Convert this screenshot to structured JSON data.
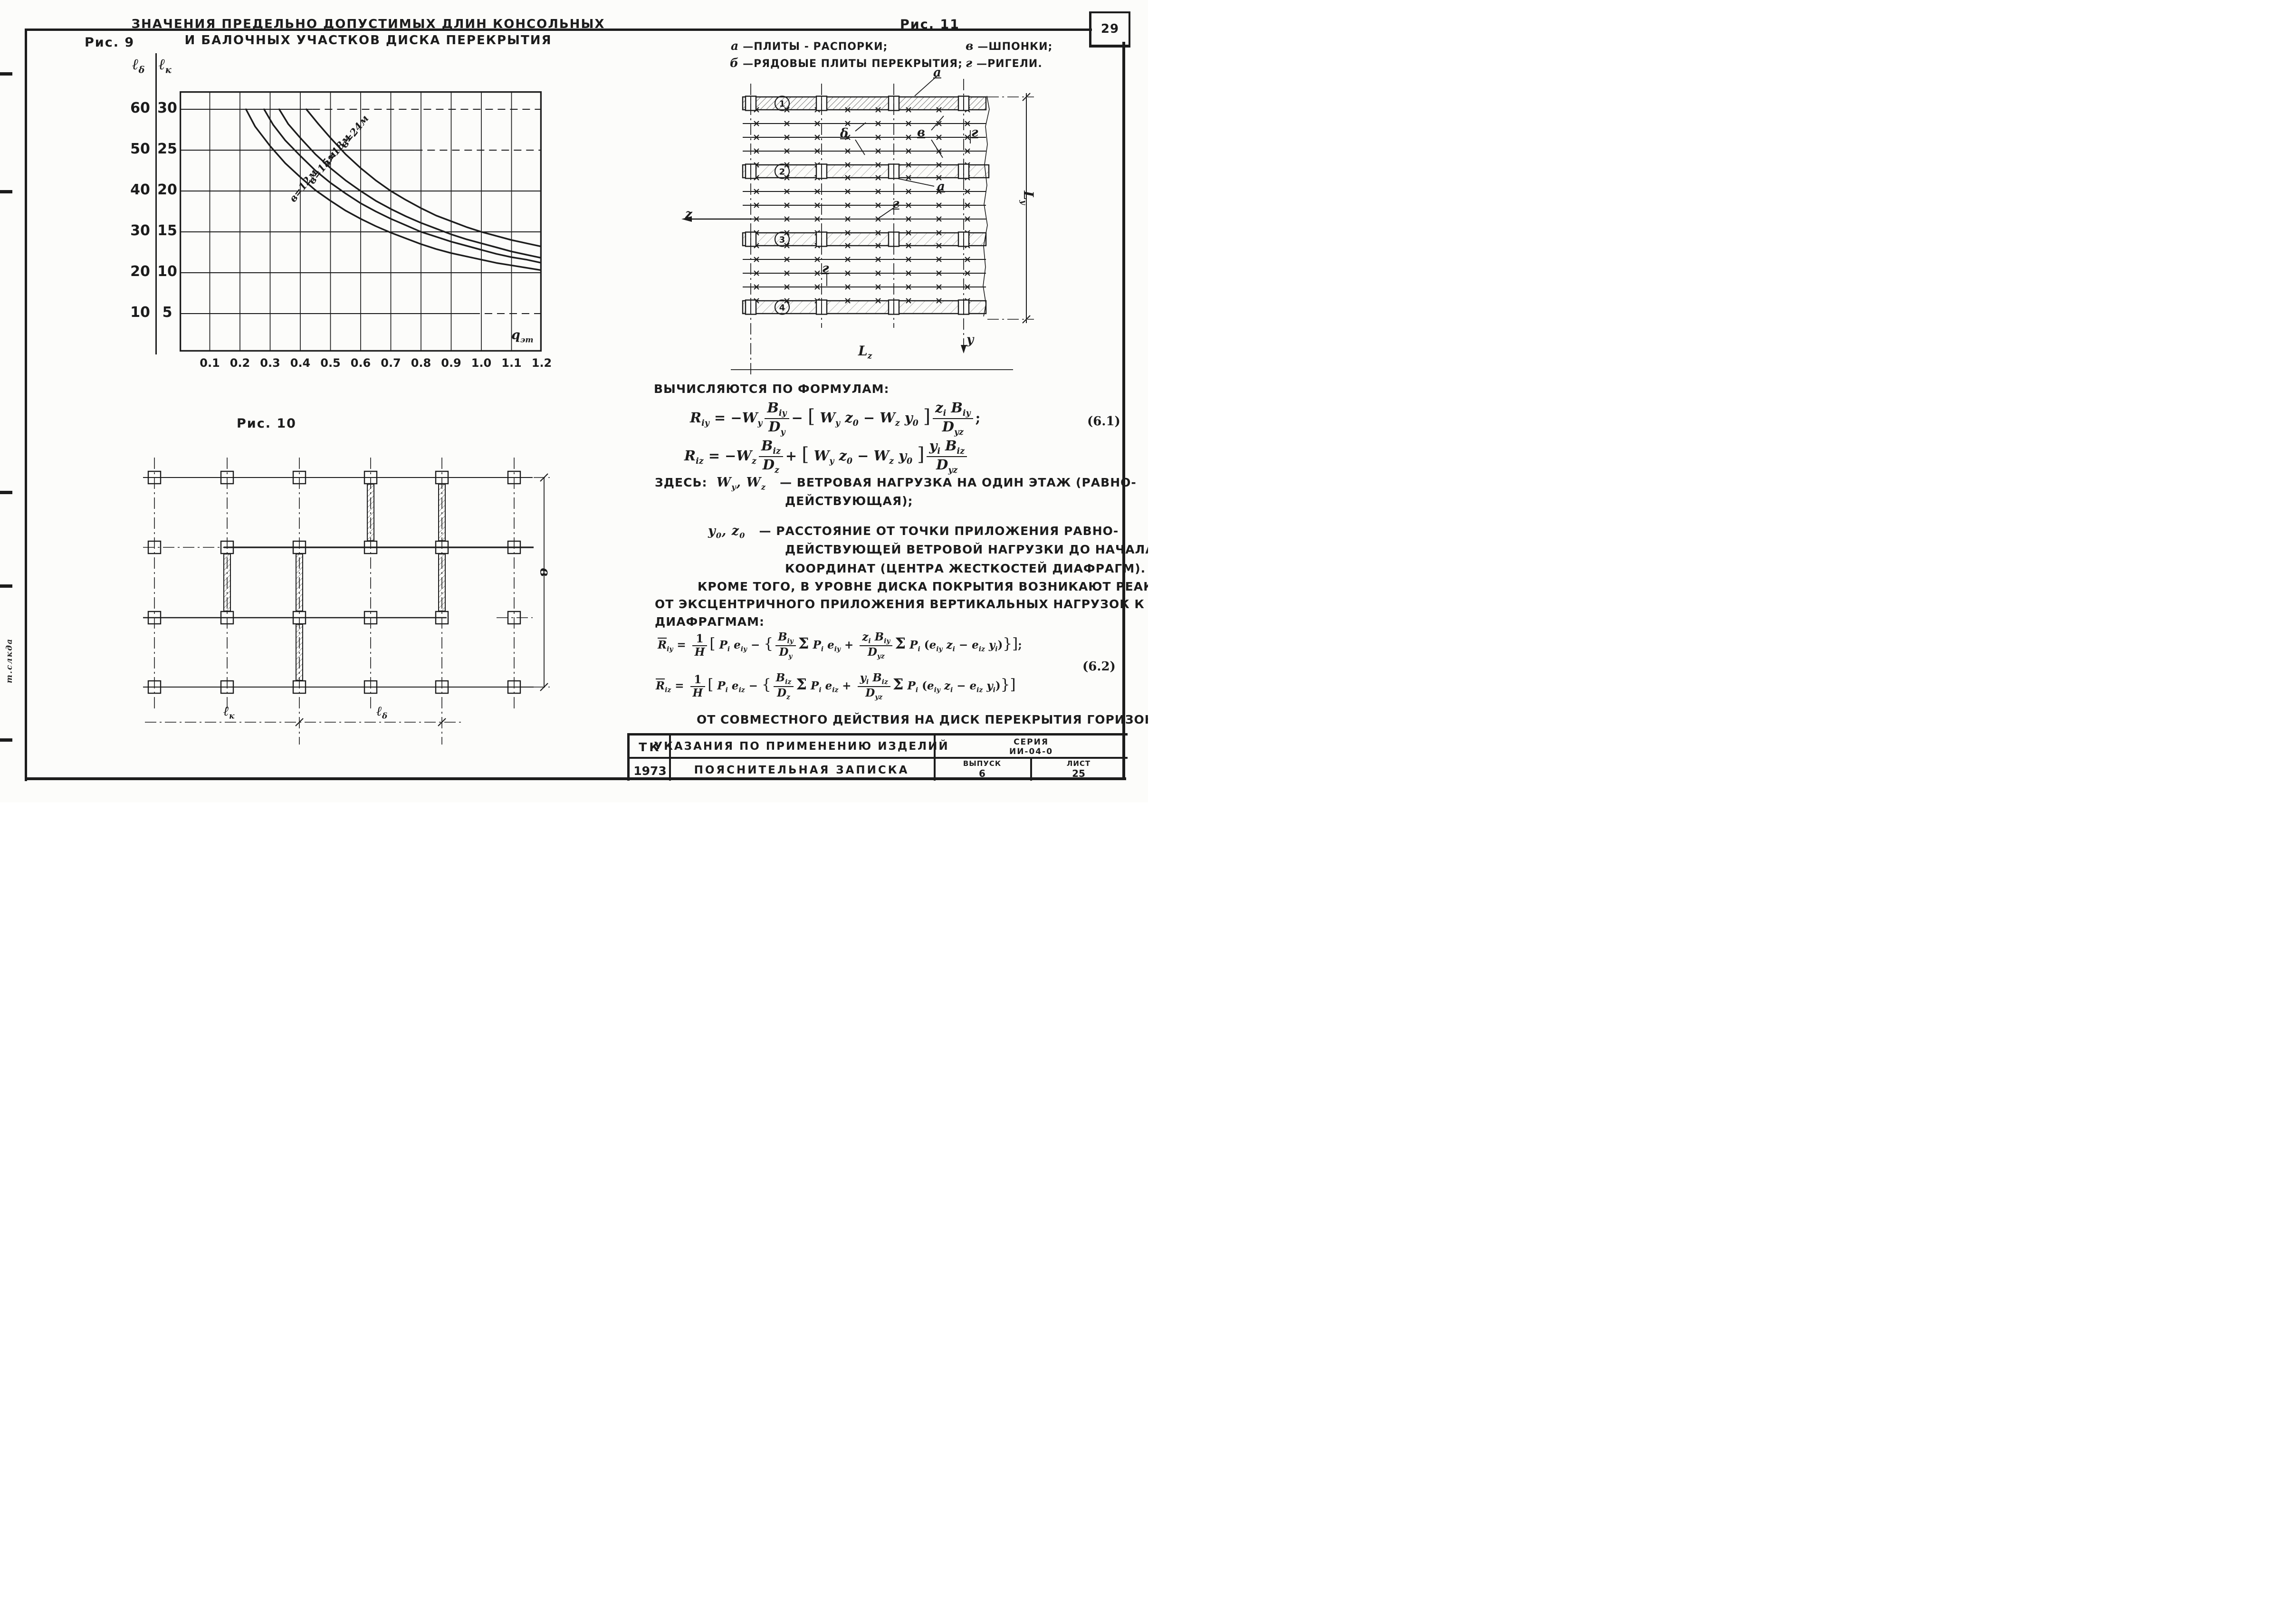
{
  "page": {
    "number": "29",
    "margin_note": "т.слкда"
  },
  "fig9": {
    "label": "Рис. 9",
    "title_line1": "ЗНАЧЕНИЯ  ПРЕДЕЛЬНО  ДОПУСТИМЫХ  ДЛИН  КОНСОЛЬНЫХ",
    "title_line2": "И  БАЛОЧНЫХ  УЧАСТКОВ  ДИСКА  ПЕРЕКРЫТИЯ",
    "axis_left_html": "ℓ<sub>δ</sub>",
    "axis_right_html": "ℓ<sub>к</sub>",
    "x_axis_label_html": "q<sub>эт</sub>"
  },
  "chart_data": {
    "type": "line",
    "title": "Значения предельно допустимых длин консольных и балочных участков диска перекрытия",
    "xlabel": "qэт",
    "ylabel_left": "ℓδ",
    "ylabel_right": "ℓк",
    "xlim": [
      0,
      1.2
    ],
    "ylim_right": [
      0,
      32
    ],
    "grid": true,
    "x_ticks": [
      0.1,
      0.2,
      0.3,
      0.4,
      0.5,
      0.6,
      0.7,
      0.8,
      0.9,
      1.0,
      1.1,
      1.2
    ],
    "x_tick_labels": [
      "0.1",
      "0.2",
      "0.3",
      "0.4",
      "0.5",
      "0.6",
      "0.7",
      "0.8",
      "0.9",
      "1.0",
      "1.1",
      "1.2"
    ],
    "y_ticks_left": [
      "60",
      "50",
      "40",
      "30",
      "20",
      "10"
    ],
    "y_ticks_right": [
      "30",
      "25",
      "20",
      "15",
      "10",
      "5"
    ],
    "note": "curve y-values in ℓк units (right scale); ℓδ = 2·ℓк",
    "series": [
      {
        "name": "в=24м",
        "points": [
          [
            0.42,
            30
          ],
          [
            0.46,
            28.2
          ],
          [
            0.5,
            26.5
          ],
          [
            0.55,
            24.5
          ],
          [
            0.6,
            22.8
          ],
          [
            0.65,
            21.3
          ],
          [
            0.7,
            20
          ],
          [
            0.75,
            18.9
          ],
          [
            0.8,
            17.9
          ],
          [
            0.85,
            17
          ],
          [
            0.9,
            16.3
          ],
          [
            0.95,
            15.6
          ],
          [
            1.0,
            15
          ],
          [
            1.05,
            14.5
          ],
          [
            1.1,
            14
          ],
          [
            1.15,
            13.6
          ],
          [
            1.2,
            13.2
          ]
        ]
      },
      {
        "name": "в=18м",
        "points": [
          [
            0.33,
            30
          ],
          [
            0.36,
            28.2
          ],
          [
            0.4,
            26.5
          ],
          [
            0.45,
            24.5
          ],
          [
            0.5,
            22.8
          ],
          [
            0.55,
            21.3
          ],
          [
            0.6,
            20
          ],
          [
            0.65,
            18.8
          ],
          [
            0.7,
            17.8
          ],
          [
            0.75,
            16.9
          ],
          [
            0.8,
            16.1
          ],
          [
            0.85,
            15.4
          ],
          [
            0.9,
            14.7
          ],
          [
            0.95,
            14.1
          ],
          [
            1.0,
            13.6
          ],
          [
            1.05,
            13.1
          ],
          [
            1.1,
            12.6
          ],
          [
            1.15,
            12.2
          ],
          [
            1.2,
            11.8
          ]
        ]
      },
      {
        "name": "в=15м",
        "points": [
          [
            0.28,
            30
          ],
          [
            0.31,
            28.1
          ],
          [
            0.35,
            26.2
          ],
          [
            0.4,
            24.3
          ],
          [
            0.45,
            22.5
          ],
          [
            0.5,
            21
          ],
          [
            0.55,
            19.7
          ],
          [
            0.6,
            18.5
          ],
          [
            0.65,
            17.5
          ],
          [
            0.7,
            16.6
          ],
          [
            0.75,
            15.8
          ],
          [
            0.8,
            15
          ],
          [
            0.85,
            14.4
          ],
          [
            0.9,
            13.8
          ],
          [
            0.95,
            13.3
          ],
          [
            1.0,
            12.8
          ],
          [
            1.05,
            12.3
          ],
          [
            1.1,
            11.9
          ],
          [
            1.15,
            11.6
          ],
          [
            1.2,
            11.2
          ]
        ]
      },
      {
        "name": "в=12м",
        "points": [
          [
            0.22,
            30
          ],
          [
            0.25,
            27.9
          ],
          [
            0.3,
            25.5
          ],
          [
            0.35,
            23.4
          ],
          [
            0.4,
            21.7
          ],
          [
            0.45,
            20.1
          ],
          [
            0.5,
            18.8
          ],
          [
            0.55,
            17.6
          ],
          [
            0.6,
            16.6
          ],
          [
            0.65,
            15.7
          ],
          [
            0.7,
            14.9
          ],
          [
            0.75,
            14.2
          ],
          [
            0.8,
            13.5
          ],
          [
            0.85,
            12.9
          ],
          [
            0.9,
            12.4
          ],
          [
            0.95,
            12
          ],
          [
            1.0,
            11.6
          ],
          [
            1.05,
            11.2
          ],
          [
            1.1,
            10.9
          ],
          [
            1.15,
            10.6
          ],
          [
            1.2,
            10.3
          ]
        ]
      }
    ]
  },
  "fig10": {
    "label": "Рис. 10",
    "dim_console_html": "ℓ<sub>к</sub>",
    "dim_beam_html": "ℓ<sub>δ</sub>",
    "dim_width": "в"
  },
  "fig11": {
    "label": "Рис. 11",
    "legend": [
      {
        "key": "а",
        "text": "—ПЛИТЫ - РАСПОРКИ;"
      },
      {
        "key": "в",
        "text": "—ШПОНКИ;"
      },
      {
        "key": "б",
        "text": "—РЯДОВЫЕ ПЛИТЫ ПЕРЕКРЫТИЯ;"
      },
      {
        "key": "г",
        "text": "—РИГЕЛИ."
      }
    ],
    "row_markers": [
      "1",
      "2",
      "3",
      "4"
    ],
    "callouts": {
      "a": "а",
      "b": "δ",
      "v": "в",
      "g": "г"
    },
    "axis_z": "z",
    "axis_y": "у",
    "dim_lz_html": "L<sub>z</sub>",
    "dim_ly_html": "L<sub>у</sub>"
  },
  "text": {
    "intro": "ВЫЧИСЛЯЮТСЯ  ПО ФОРМУЛАМ:",
    "eq61_line1_html": "<i>R<sub>iy</sub></i> = −<i>W<sub>y</sub></i><span class=\"fr\"><span class=\"n\"><i>B<sub>iy</sub></i></span><span class=\"d\"><i>D<sub>y</sub></i></span></span>− <span class=\"bg\">[</span> <i>W<sub>y</sub></i> <i>z<sub>0</sub></i> − <i>W<sub>z</sub></i> <i>y<sub>0</sub></i> <span class=\"bg\">]</span><span class=\"fr\"><span class=\"n\"><i>z<sub>i</sub> B<sub>iy</sub></i></span><span class=\"d\"><i>D<sub>yz</sub></i></span></span>;",
    "eq61_line2_html": "<i>R<sub>iz</sub></i> = −<i>W<sub>z</sub></i><span class=\"fr\"><span class=\"n\"><i>B<sub>iz</sub></i></span><span class=\"d\"><i>D<sub>z</sub></i></span></span>+ <span class=\"bg\">[</span> <i>W<sub>y</sub></i> <i>z<sub>0</sub></i> − <i>W<sub>z</sub></i> <i>y<sub>0</sub></i> <span class=\"bg\">]</span><span class=\"fr\"><span class=\"n\"><i>y<sub>i</sub> B<sub>iz</sub></i></span><span class=\"d\"><i>D<sub>yz</sub></i></span></span>",
    "eq61_no": "(6.1)",
    "here_line1_html": "ЗДЕСЬ: &nbsp;<span class=\"sym\">W<sub>y</sub>, W<sub>z</sub></span> &nbsp;&nbsp;— ВЕТРОВАЯ НАГРУЗКА НА ОДИН ЭТАЖ (РАВНО-",
    "here_line2": "ДЕЙСТВУЮЩАЯ);",
    "y0_line1_html": "<span class=\"sym\">y<sub>0</sub>, z<sub>0</sub></span> &nbsp;&nbsp;— РАССТОЯНИЕ ОТ ТОЧКИ ПРИЛОЖЕНИЯ РАВНО-",
    "y0_line2": "ДЕЙСТВУЮЩЕЙ ВЕТРОВОЙ НАГРУЗКИ ДО НАЧАЛА",
    "y0_line3": "КООРДИНАТ (ЦЕНТРА ЖЕСТКОСТЕЙ ДИАФРАГМ).",
    "para1_line1": "КРОМЕ ТОГО, В УРОВНЕ ДИСКА ПОКРЫТИЯ ВОЗНИКАЮТ РЕАКЦИИ",
    "para1_line2": "ОТ ЭКСЦЕНТРИЧНОГО ПРИЛОЖЕНИЯ ВЕРТИКАЛЬНЫХ НАГРУЗОК  К",
    "para1_line3": "ДИАФРАГМАМ:",
    "eq62_line1_html": "<span class=\"ol\"><i>R</i></span><i><sub>iy</sub></i> = <span class=\"fr\"><span class=\"n\">1</span><span class=\"d\"><i>H</i></span></span><span class=\"bg\">[</span> <i>P<sub>i</sub> e<sub>iy</sub></i> − <span class=\"bg\">{</span><span class=\"fr\"><span class=\"n\"><i>B<sub>iy</sub></i></span><span class=\"d\"><i>D<sub>y</sub></i></span></span><span class=\"sm\">Σ</span> <i>P<sub>i</sub> e<sub>iy</sub></i> + <span class=\"fr\"><span class=\"n\"><i>z<sub>i</sub> B<sub>iy</sub></i></span><span class=\"d\"><i>D<sub>yz</sub></i></span></span><span class=\"sm\">Σ</span> <i>P<sub>i</sub></i> (<i>e<sub>iy</sub> z<sub>i</sub></i> − <i>e<sub>iz</sub> y<sub>i</sub></i>)<span class=\"bg\">}</span><span class=\"bg\">]</span>;",
    "eq62_line2_html": "<span class=\"ol\"><i>R</i></span><i><sub>iz</sub></i> = <span class=\"fr\"><span class=\"n\">1</span><span class=\"d\"><i>H</i></span></span><span class=\"bg\">[</span> <i>P<sub>i</sub> e<sub>iz</sub></i> − <span class=\"bg\">{</span><span class=\"fr\"><span class=\"n\"><i>B<sub>iz</sub></i></span><span class=\"d\"><i>D<sub>z</sub></i></span></span><span class=\"sm\">Σ</span> <i>P<sub>i</sub> e<sub>iz</sub></i> + <span class=\"fr\"><span class=\"n\"><i>y<sub>i</sub> B<sub>iz</sub></i></span><span class=\"d\"><i>D<sub>yz</sub></i></span></span><span class=\"sm\">Σ</span> <i>P<sub>i</sub></i> (<i>e<sub>iy</sub> z<sub>i</sub></i> − <i>e<sub>iz</sub> y<sub>i</sub></i>)<span class=\"bg\">}</span><span class=\"bg\">]</span>",
    "eq62_no": "(6.2)",
    "para2": "ОТ СОВМЕСТНОГО ДЕЙСТВИЯ  НА ДИСК  ПЕРЕКРЫТИЯ ГОРИЗОН-"
  },
  "titleblock": {
    "org": "ТК",
    "doc_title": "УКАЗАНИЯ  ПО ПРИМЕНЕНИЮ  ИЗДЕЛИЙ",
    "series_label": "СЕРИЯ",
    "series_value": "ИИ-04-0",
    "year": "1973",
    "subtitle": "ПОЯСНИТЕЛЬНАЯ   ЗАПИСКА",
    "issue_label": "ВЫПУСК",
    "issue_value": "6",
    "sheet_label": "ЛИСТ",
    "sheet_value": "25"
  }
}
